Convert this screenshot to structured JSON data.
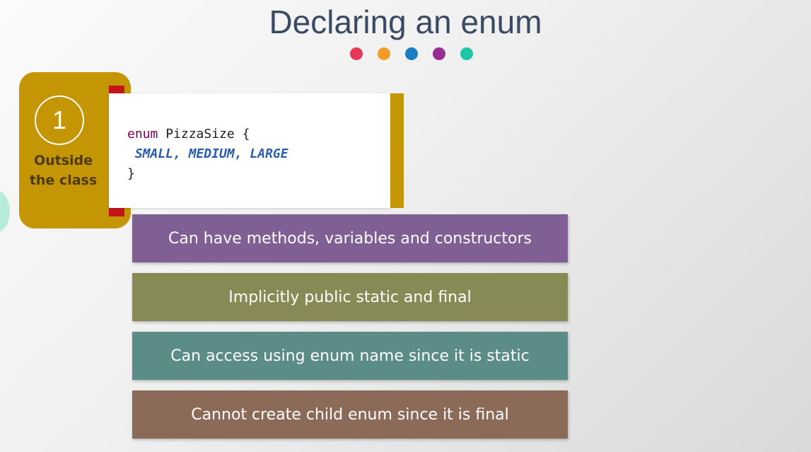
{
  "slide": {
    "title": "Declaring an enum",
    "dot_colors": [
      "#e8395b",
      "#f39c2c",
      "#1a7dc1",
      "#962d91",
      "#1fc7a8"
    ]
  },
  "badge": {
    "number": "1",
    "label_line1": "Outside",
    "label_line2": "the class"
  },
  "code": {
    "keyword": "enum",
    "name_open": " PizzaSize {",
    "constants": " SMALL, MEDIUM, LARGE",
    "close": "}"
  },
  "points": [
    {
      "text": "Can have methods, variables and constructors",
      "color": "#7f5f94"
    },
    {
      "text": "Implicitly public static and final",
      "color": "#878a55"
    },
    {
      "text": "Can access using enum name since it is static",
      "color": "#5b8c87"
    },
    {
      "text": "Cannot create child enum since it is final",
      "color": "#8b6b58"
    }
  ]
}
